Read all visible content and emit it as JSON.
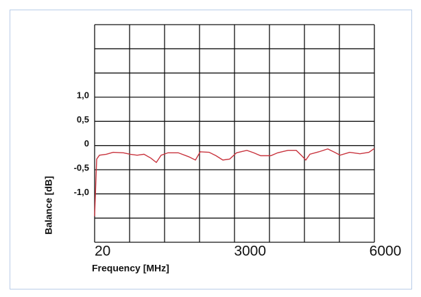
{
  "chart_data": {
    "type": "line",
    "xlabel": "Frequency [MHz]",
    "ylabel": "Balance  [dB]",
    "x": [
      20,
      64,
      123,
      269,
      416,
      636,
      782,
      929,
      1075,
      1222,
      1339,
      1442,
      1588,
      1808,
      2028,
      2175,
      2277,
      2468,
      2614,
      2761,
      2907,
      3054,
      3274,
      3420,
      3567,
      3787,
      3933,
      4153,
      4329,
      4446,
      4534,
      4622,
      4812,
      5003,
      5149,
      5267,
      5472,
      5692,
      5883,
      6000
    ],
    "series": [
      {
        "name": "Balance",
        "color": "#c8323c",
        "values": [
          -1.46,
          -0.28,
          -0.2,
          -0.18,
          -0.14,
          -0.15,
          -0.18,
          -0.2,
          -0.18,
          -0.26,
          -0.35,
          -0.2,
          -0.15,
          -0.15,
          -0.23,
          -0.3,
          -0.13,
          -0.14,
          -0.21,
          -0.3,
          -0.28,
          -0.15,
          -0.1,
          -0.15,
          -0.21,
          -0.21,
          -0.15,
          -0.1,
          -0.1,
          -0.21,
          -0.3,
          -0.18,
          -0.13,
          -0.07,
          -0.14,
          -0.2,
          -0.14,
          -0.17,
          -0.14,
          -0.06
        ]
      }
    ],
    "xlim": [
      20,
      6000
    ],
    "xticks": [
      20,
      3000,
      6000
    ],
    "ylim": [
      -2,
      2.5
    ],
    "yticks": [
      {
        "value": 1,
        "label": "1,0"
      },
      {
        "value": 0.5,
        "label": "0,5"
      },
      0,
      {
        "value": -0.5,
        "label": "-0,5"
      },
      {
        "value": -1,
        "label": "-1,0"
      }
    ],
    "grid": true,
    "grid_columns": 8,
    "grid_rows": 9
  }
}
